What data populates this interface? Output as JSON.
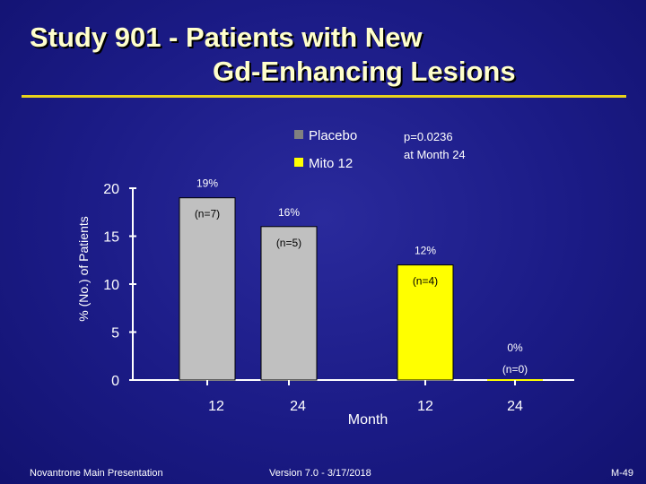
{
  "slide": {
    "title_line1": "Study 901 - Patients with New",
    "title_line2": "Gd-Enhancing Lesions",
    "footer_left": "Novantrone Main Presentation",
    "footer_center": "Version 7.0 - 3/17/2018",
    "footer_right": "M-49"
  },
  "colors": {
    "accent_rule": "#e8d21c",
    "placebo": "#c0c0c0",
    "mito": "#ffff00"
  },
  "chart_data": {
    "type": "bar",
    "ylabel": "% (No.) of Patients",
    "xlabel": "Month",
    "ylim": [
      0,
      20
    ],
    "yticks": [
      "0",
      "5",
      "10",
      "15",
      "20"
    ],
    "annotation": [
      "p=0.0236",
      "at Month 24"
    ],
    "legend": [
      {
        "name": "Placebo",
        "color": "#808080"
      },
      {
        "name": "Mito 12",
        "color": "#ffff00"
      }
    ],
    "series": [
      {
        "name": "Placebo",
        "categories": [
          "12",
          "24"
        ],
        "values": [
          19,
          16
        ],
        "labels": [
          "19%",
          "16%"
        ],
        "counts": [
          "(n=7)",
          "(n=5)"
        ]
      },
      {
        "name": "Mito 12",
        "categories": [
          "12",
          "24"
        ],
        "values": [
          12,
          0
        ],
        "labels": [
          "12%",
          "0%"
        ],
        "counts": [
          "(n=4)",
          "(n=0)"
        ]
      }
    ]
  }
}
